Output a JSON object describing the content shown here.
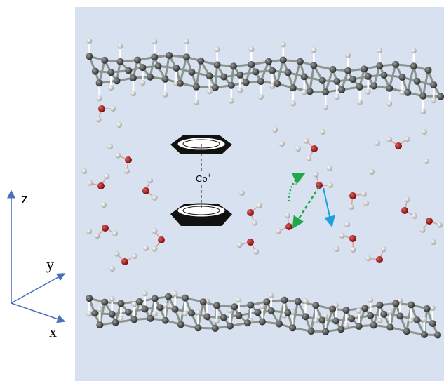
{
  "axes": {
    "z": "z",
    "y": "y",
    "x": "x"
  },
  "ion": {
    "label": "Co",
    "charge": "+"
  }
}
